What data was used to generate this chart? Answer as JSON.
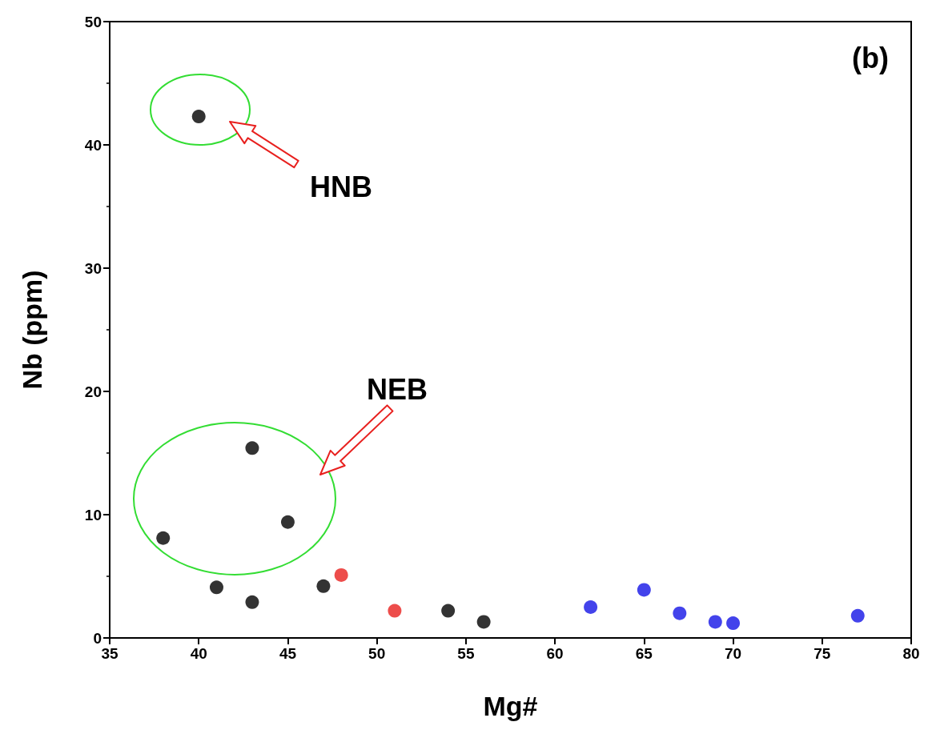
{
  "chart_data": {
    "type": "scatter",
    "xlabel": "Mg#",
    "ylabel": "Nb (ppm)",
    "xlim": [
      35,
      80
    ],
    "xticks": [
      35,
      40,
      45,
      50,
      55,
      60,
      65,
      70,
      75,
      80
    ],
    "ylim": [
      0,
      50
    ],
    "yticks": [
      0,
      10,
      20,
      30,
      40,
      50
    ],
    "grid": false,
    "marker": "circle",
    "series": [
      {
        "color": "#000000",
        "x": [
          40,
          43,
          38,
          45,
          41,
          43,
          47,
          54,
          56
        ],
        "values": [
          42.3,
          15.4,
          8.1,
          9.4,
          4.1,
          2.9,
          4.2,
          2.2,
          1.3
        ]
      },
      {
        "color": "#e8201e",
        "x": [
          48,
          51
        ],
        "values": [
          5.1,
          2.2
        ]
      },
      {
        "color": "#1414e6",
        "x": [
          62,
          65,
          67,
          69,
          70,
          77
        ],
        "values": [
          2.5,
          3.9,
          2.0,
          1.3,
          1.2,
          1.8
        ]
      }
    ],
    "annotations": [
      "(b)",
      "HNB",
      "NEB"
    ]
  }
}
